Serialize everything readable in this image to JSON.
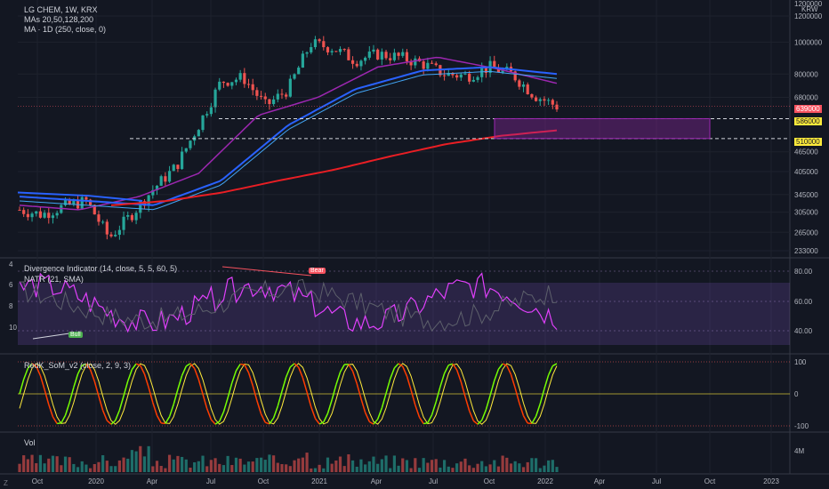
{
  "header": {
    "symbol": "LG CHEM, 1W, KRX",
    "mas_label": "MAs 20,50,128,200",
    "ma_label": "MA · 1D (250, close, 0)",
    "currency_top": "1200000",
    "currency": "KRW"
  },
  "panes": {
    "divergence_label": "Divergence Indicator (14, close, 5, 5, 60, 5)",
    "natr_label": "NATR (21, SMA)",
    "som_label": "RedK_SoM_v2 (close, 2, 9, 3)",
    "vol_label": "Vol"
  },
  "labels": {
    "bull": "Bull",
    "bear": "Bear"
  },
  "price_axis": {
    "ticks": [
      "1200000",
      "1000000",
      "800000",
      "680000",
      "465000",
      "405000",
      "345000",
      "305000",
      "265000",
      "233000"
    ],
    "current_price": "639000",
    "level_1": "586000",
    "level_2": "510000",
    "current_color": "#f7525f",
    "level_color": "#ffeb3b"
  },
  "indicator_axis": {
    "left_ticks": [
      "4",
      "6",
      "8",
      "10"
    ],
    "right_ticks": [
      "80.00",
      "60.00",
      "40.00"
    ]
  },
  "som_axis": {
    "ticks": [
      "100",
      "0",
      "-100"
    ]
  },
  "vol_axis": {
    "ticks": [
      "4M"
    ]
  },
  "time_axis": {
    "ticks": [
      "Oct",
      "2020",
      "Apr",
      "Jul",
      "Oct",
      "2021",
      "Apr",
      "Jul",
      "Oct",
      "2022",
      "Apr",
      "Jul",
      "Oct",
      "2023"
    ],
    "corner": "Z"
  },
  "colors": {
    "up": "#26a69a",
    "down": "#ef5350",
    "ma_purple": "#9c27b0",
    "ma_blue": "#2962ff",
    "ma_lightblue": "#42a5f5",
    "ma_red": "#e91e24",
    "som_green": "#76ff03",
    "som_red": "#ff3d00",
    "som_yellow": "#ffeb3b",
    "rsi_purple": "#e040fb"
  },
  "chart_data": {
    "type": "candlestick",
    "symbol": "LG CHEM",
    "interval": "1W",
    "exchange": "KRX",
    "x": [
      "Oct",
      "2020",
      "Apr",
      "Jul",
      "Oct",
      "2021",
      "Apr",
      "Jul",
      "Oct",
      "2022"
    ],
    "price_path": [
      310000,
      300000,
      318000,
      330000,
      255000,
      300000,
      360000,
      420000,
      560000,
      760000,
      780000,
      640000,
      720000,
      990000,
      960000,
      880000,
      920000,
      900000,
      860000,
      800000,
      790000,
      840000,
      800000,
      690000,
      639000
    ],
    "levels": [
      586000,
      510000
    ],
    "last_price": 639000,
    "ylim": [
      233000,
      1200000
    ],
    "y_scale": "log",
    "ma_250_daily_path": [
      320000,
      330000,
      350000,
      380000,
      410000,
      450000,
      490000,
      520000,
      540000
    ],
    "ma_purple_path": [
      320000,
      310000,
      340000,
      400000,
      600000,
      680000,
      840000,
      900000,
      830000,
      750000
    ],
    "ma_blue_path": [
      340000,
      330000,
      320000,
      380000,
      560000,
      720000,
      820000,
      840000,
      800000
    ]
  }
}
